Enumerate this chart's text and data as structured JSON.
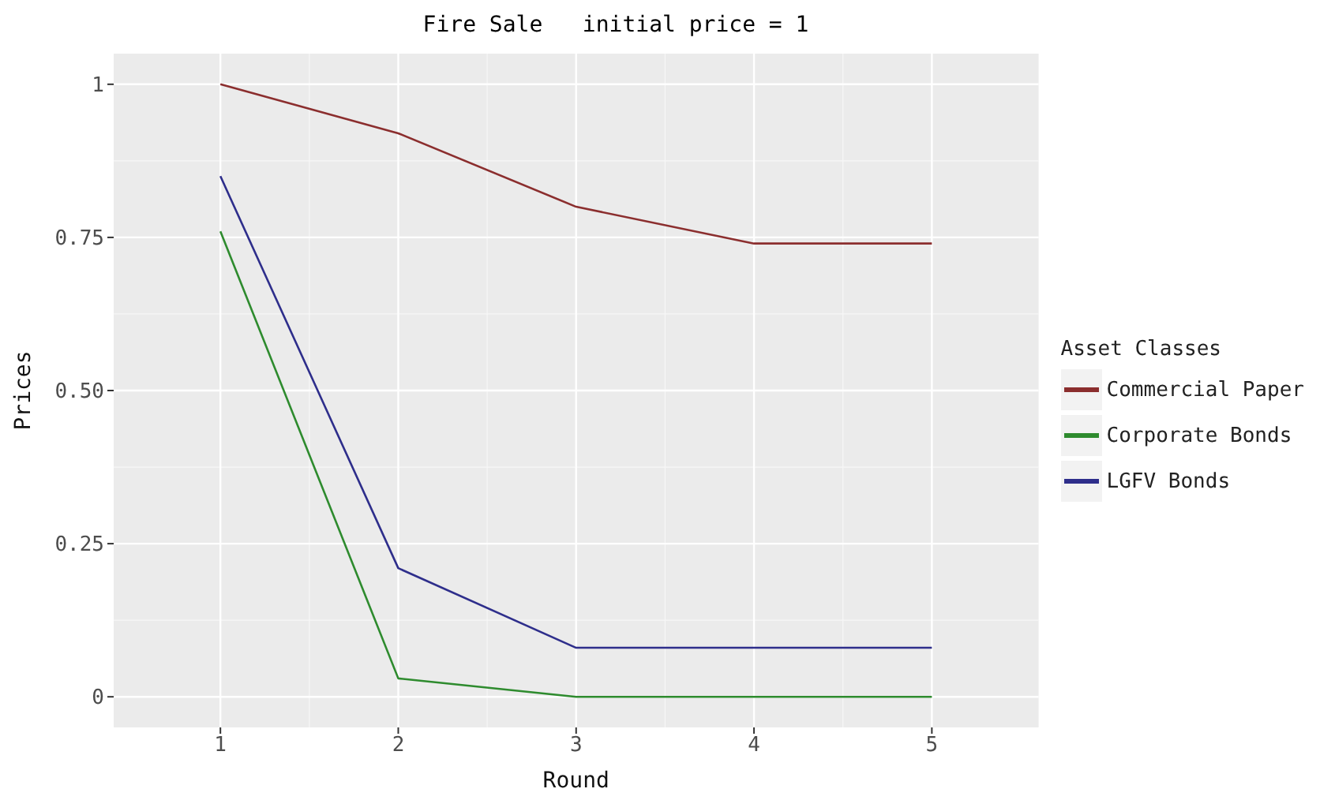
{
  "chart_data": {
    "type": "line",
    "title": "Fire Sale   initial price = 1",
    "xlabel": "Round",
    "ylabel": "Prices",
    "legend_title": "Asset Classes",
    "legend": "right",
    "grid": true,
    "line_style": "solid",
    "marker": "none",
    "x": [
      1,
      2,
      3,
      4,
      5
    ],
    "xlim": [
      0.4,
      5.6
    ],
    "xticks": [
      1,
      2,
      3,
      4,
      5
    ],
    "ylim": [
      -0.05,
      1.05
    ],
    "yticks": [
      0,
      0.25,
      {
        "value": 0.5,
        "label": "0.50"
      },
      0.75,
      1
    ],
    "series": [
      {
        "name": "Commercial Paper",
        "color": "#8b2e2e",
        "values": [
          1,
          0.92,
          0.8,
          0.74,
          0.74
        ]
      },
      {
        "name": "Corporate Bonds",
        "color": "#2e8b2e",
        "values": [
          0.76,
          0.03,
          0.0,
          0.0,
          0.0
        ]
      },
      {
        "name": "LGFV Bonds",
        "color": "#2e2e8b",
        "values": [
          0.85,
          0.21,
          0.08,
          0.08,
          0.08
        ]
      }
    ]
  }
}
